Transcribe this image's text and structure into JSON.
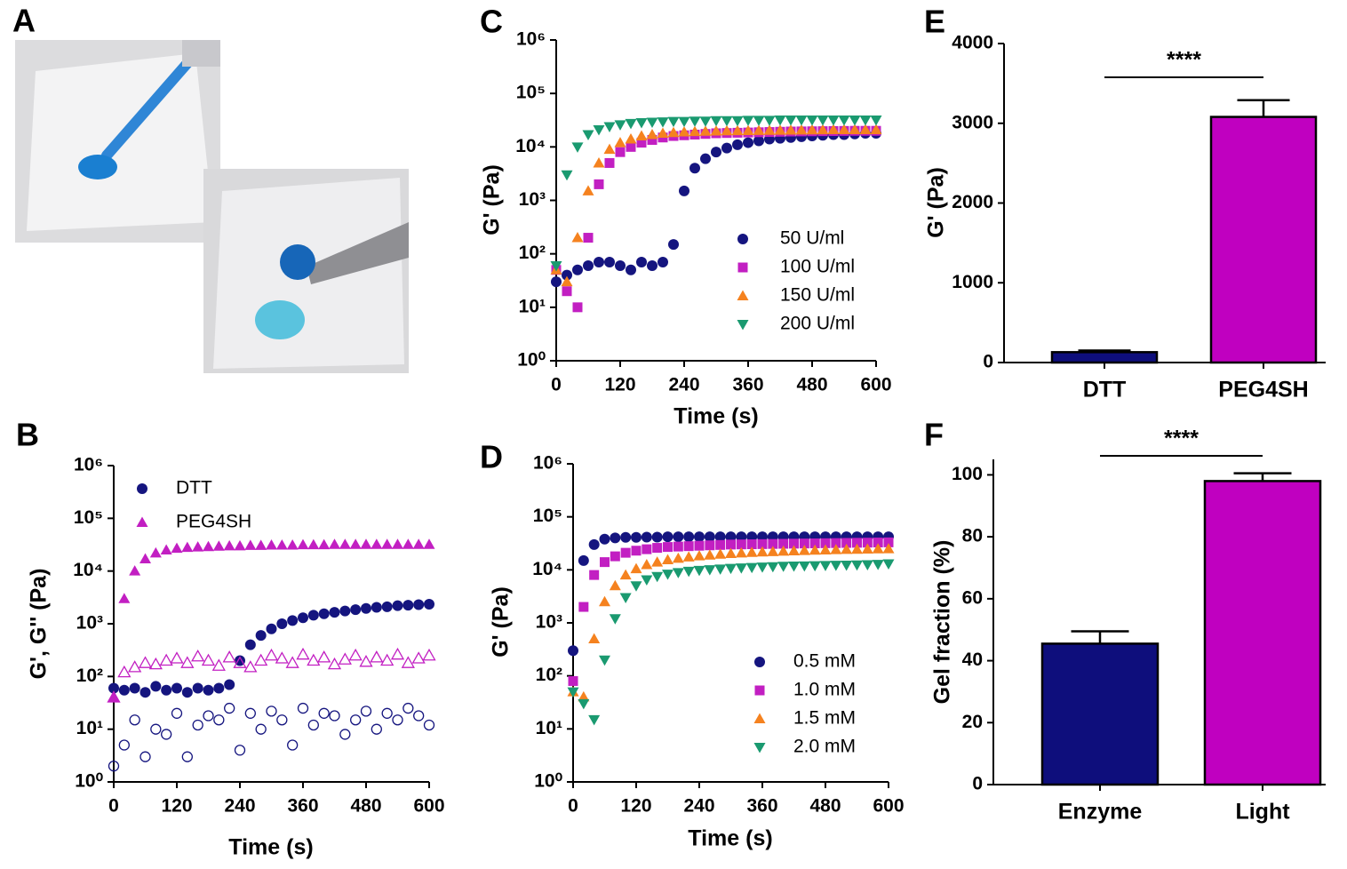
{
  "chart_data": [
    {
      "type": "image",
      "panel": "A"
    },
    {
      "type": "scatter",
      "panel": "B",
      "xlabel": "Time (s)",
      "ylabel": "G', G'' (Pa)",
      "yscale": "log",
      "legend": "upper left",
      "x": [
        0,
        20,
        40,
        60,
        80,
        100,
        120,
        140,
        160,
        180,
        200,
        220,
        240,
        260,
        280,
        300,
        320,
        340,
        360,
        380,
        400,
        420,
        440,
        460,
        480,
        500,
        520,
        540,
        560,
        580,
        600
      ],
      "xlim": [
        0,
        600
      ],
      "xticks": [
        0,
        120,
        240,
        360,
        480,
        600
      ],
      "ylim": [
        1,
        1000000
      ],
      "yticks": [
        {
          "value": 1,
          "label": "10⁰"
        },
        {
          "value": 10,
          "label": "10¹"
        },
        {
          "value": 100,
          "label": "10²"
        },
        {
          "value": 1000,
          "label": "10³"
        },
        {
          "value": 10000,
          "label": "10⁴"
        },
        {
          "value": 100000,
          "label": "10⁵"
        },
        {
          "value": 1000000,
          "label": "10⁶"
        }
      ],
      "series": [
        {
          "name": "DTT",
          "color": "#15157f",
          "marker": "circle",
          "values": [
            60,
            55,
            60,
            50,
            65,
            55,
            60,
            50,
            60,
            55,
            60,
            70,
            200,
            400,
            600,
            800,
            1000,
            1150,
            1300,
            1450,
            1550,
            1650,
            1750,
            1850,
            1950,
            2050,
            2100,
            2200,
            2250,
            2300,
            2350
          ],
          "loss_values": [
            2,
            5,
            15,
            3,
            10,
            8,
            20,
            3,
            12,
            18,
            15,
            25,
            4,
            20,
            10,
            22,
            15,
            5,
            25,
            12,
            20,
            18,
            8,
            15,
            22,
            10,
            20,
            15,
            25,
            18,
            12
          ]
        },
        {
          "name": "PEG4SH",
          "color": "#c21fc2",
          "marker": "triangle",
          "values": [
            40,
            3000,
            10000,
            17000,
            22000,
            25000,
            27000,
            28000,
            28500,
            29000,
            29500,
            30000,
            30000,
            30500,
            30500,
            31000,
            31000,
            31000,
            31500,
            31500,
            31500,
            32000,
            32000,
            32000,
            32000,
            32000,
            32000,
            32000,
            32000,
            32000,
            32000
          ],
          "loss_values": [
            40,
            120,
            150,
            180,
            170,
            200,
            220,
            180,
            240,
            200,
            160,
            230,
            180,
            150,
            200,
            250,
            220,
            180,
            260,
            200,
            230,
            170,
            210,
            250,
            190,
            230,
            200,
            260,
            180,
            220,
            250
          ]
        }
      ]
    },
    {
      "type": "scatter",
      "panel": "C",
      "xlabel": "Time (s)",
      "ylabel": "G' (Pa)",
      "yscale": "log",
      "legend": "lower right",
      "x": [
        0,
        20,
        40,
        60,
        80,
        100,
        120,
        140,
        160,
        180,
        200,
        220,
        240,
        260,
        280,
        300,
        320,
        340,
        360,
        380,
        400,
        420,
        440,
        460,
        480,
        500,
        520,
        540,
        560,
        580,
        600
      ],
      "xlim": [
        0,
        600
      ],
      "xticks": [
        0,
        120,
        240,
        360,
        480,
        600
      ],
      "ylim": [
        1,
        1000000
      ],
      "yticks": [
        {
          "value": 1,
          "label": "10⁰"
        },
        {
          "value": 10,
          "label": "10¹"
        },
        {
          "value": 100,
          "label": "10²"
        },
        {
          "value": 1000,
          "label": "10³"
        },
        {
          "value": 10000,
          "label": "10⁴"
        },
        {
          "value": 100000,
          "label": "10⁵"
        },
        {
          "value": 1000000,
          "label": "10⁶"
        }
      ],
      "series": [
        {
          "name": "50 U/ml",
          "color": "#15157f",
          "marker": "circle",
          "values": [
            30,
            40,
            50,
            60,
            70,
            70,
            60,
            50,
            70,
            60,
            70,
            150,
            1500,
            4000,
            6000,
            8000,
            9500,
            11000,
            12000,
            13000,
            14000,
            14500,
            15000,
            15500,
            16000,
            16500,
            17000,
            17000,
            17500,
            18000,
            18000
          ]
        },
        {
          "name": "100 U/ml",
          "color": "#c21fc2",
          "marker": "square",
          "values": [
            50,
            20,
            10,
            200,
            2000,
            5000,
            8000,
            10000,
            12000,
            13500,
            15000,
            16000,
            16500,
            17000,
            17500,
            18000,
            18200,
            18400,
            18600,
            18800,
            19000,
            19200,
            19400,
            19500,
            19600,
            19700,
            19800,
            19900,
            20000,
            20000,
            20000
          ]
        },
        {
          "name": "150 U/ml",
          "color": "#f5821f",
          "marker": "triangle",
          "values": [
            50,
            30,
            200,
            1500,
            5000,
            9000,
            12000,
            14000,
            16000,
            17000,
            18000,
            18500,
            19000,
            19300,
            19600,
            19800,
            20000,
            20100,
            20200,
            20300,
            20400,
            20500,
            20600,
            20700,
            20800,
            20900,
            21000,
            21000,
            21000,
            21000,
            21000
          ]
        },
        {
          "name": "200 U/ml",
          "color": "#1a9a70",
          "marker": "triangle-down",
          "values": [
            60,
            3000,
            10000,
            17000,
            21000,
            24000,
            26000,
            27500,
            28500,
            29000,
            29500,
            30000,
            30000,
            30500,
            30500,
            31000,
            31000,
            31000,
            31500,
            31500,
            31500,
            32000,
            32000,
            32000,
            32000,
            32000,
            32000,
            32000,
            32000,
            32000,
            32000
          ]
        }
      ]
    },
    {
      "type": "scatter",
      "panel": "D",
      "xlabel": "Time (s)",
      "ylabel": "G' (Pa)",
      "yscale": "log",
      "legend": "lower right",
      "x": [
        0,
        20,
        40,
        60,
        80,
        100,
        120,
        140,
        160,
        180,
        200,
        220,
        240,
        260,
        280,
        300,
        320,
        340,
        360,
        380,
        400,
        420,
        440,
        460,
        480,
        500,
        520,
        540,
        560,
        580,
        600
      ],
      "xlim": [
        0,
        600
      ],
      "xticks": [
        0,
        120,
        240,
        360,
        480,
        600
      ],
      "ylim": [
        1,
        1000000
      ],
      "yticks": [
        {
          "value": 1,
          "label": "10⁰"
        },
        {
          "value": 10,
          "label": "10¹"
        },
        {
          "value": 100,
          "label": "10²"
        },
        {
          "value": 1000,
          "label": "10³"
        },
        {
          "value": 10000,
          "label": "10⁴"
        },
        {
          "value": 100000,
          "label": "10⁵"
        },
        {
          "value": 1000000,
          "label": "10⁶"
        }
      ],
      "series": [
        {
          "name": "0.5 mM",
          "color": "#15157f",
          "marker": "circle",
          "values": [
            300,
            15000,
            30000,
            38000,
            40000,
            41000,
            41000,
            41500,
            41500,
            42000,
            42000,
            42000,
            42000,
            42000,
            42000,
            42000,
            42000,
            42000,
            42000,
            42000,
            42000,
            42000,
            42000,
            42000,
            42000,
            42000,
            42000,
            42000,
            42000,
            42000,
            42000
          ]
        },
        {
          "name": "1.0 mM",
          "color": "#c21fc2",
          "marker": "square",
          "values": [
            80,
            2000,
            8000,
            14000,
            18000,
            21000,
            23000,
            24500,
            26000,
            27000,
            27500,
            28000,
            28500,
            29000,
            29500,
            30000,
            30200,
            30400,
            30600,
            30800,
            31000,
            31200,
            31400,
            31600,
            31800,
            32000,
            32200,
            32400,
            32600,
            32800,
            33000
          ]
        },
        {
          "name": "1.5 mM",
          "color": "#f5821f",
          "marker": "triangle",
          "values": [
            50,
            40,
            500,
            2500,
            5000,
            8000,
            10500,
            12500,
            14000,
            15500,
            16500,
            17500,
            18300,
            19000,
            19700,
            20300,
            20800,
            21300,
            21700,
            22000,
            22400,
            22800,
            23100,
            23400,
            23700,
            24000,
            24200,
            24400,
            24600,
            24800,
            25000
          ]
        },
        {
          "name": "2.0 mM",
          "color": "#1a9a70",
          "marker": "triangle-down",
          "values": [
            50,
            30,
            15,
            200,
            1200,
            3000,
            5000,
            6500,
            7500,
            8300,
            8900,
            9400,
            9800,
            10100,
            10400,
            10700,
            10900,
            11100,
            11300,
            11500,
            11700,
            11800,
            11900,
            12000,
            12100,
            12200,
            12300,
            12400,
            12500,
            12700,
            13000
          ]
        }
      ]
    },
    {
      "type": "bar",
      "panel": "E",
      "ylabel": "G' (Pa)",
      "categories": [
        "DTT",
        "PEG4SH"
      ],
      "values": [
        130,
        3080
      ],
      "errors": [
        20,
        210
      ],
      "colors": [
        "#0e0e7c",
        "#c000c0"
      ],
      "ylim": [
        0,
        4000
      ],
      "yticks": [
        0,
        1000,
        2000,
        3000,
        4000
      ],
      "annotation": "****"
    },
    {
      "type": "bar",
      "panel": "F",
      "ylabel": "Gel fraction (%)",
      "categories": [
        "Enzyme",
        "Light"
      ],
      "values": [
        45.5,
        98
      ],
      "errors": [
        4,
        2.5
      ],
      "colors": [
        "#0e0e7c",
        "#c000c0"
      ],
      "ylim": [
        0,
        105
      ],
      "yticks": [
        0,
        20,
        40,
        60,
        80,
        100
      ],
      "annotation": "****"
    }
  ]
}
